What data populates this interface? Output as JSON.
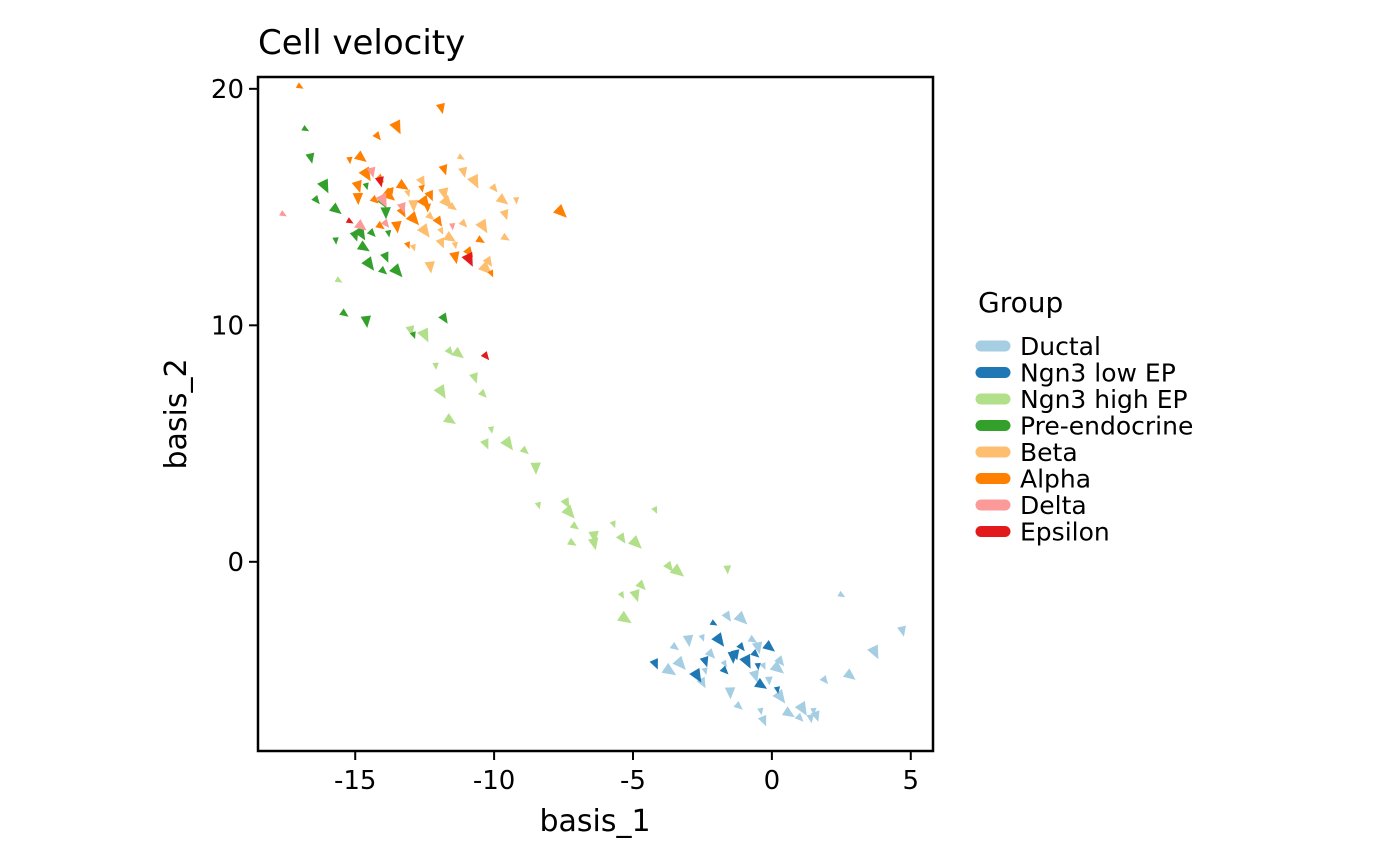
{
  "chart_data": {
    "type": "scatter",
    "title": "Cell velocity",
    "xlabel": "basis_1",
    "ylabel": "basis_2",
    "xlim": [
      -18.5,
      5.8
    ],
    "ylim": [
      -8.0,
      20.5
    ],
    "xticks": [
      -15,
      -10,
      -5,
      0,
      5
    ],
    "yticks": [
      0,
      10,
      20
    ],
    "xtick_labels": [
      "-15",
      "-10",
      "-5",
      "0",
      "5"
    ],
    "ytick_labels": [
      "0",
      "10",
      "20"
    ],
    "grid": false,
    "legend": {
      "title": "Group",
      "placement": "right"
    },
    "series": [
      {
        "name": "Ductal",
        "color": "#a6cee3",
        "points": [
          [
            2.5,
            -1.4
          ],
          [
            4.7,
            -2.9
          ],
          [
            3.7,
            -3.8
          ],
          [
            1.9,
            -5.0
          ],
          [
            2.8,
            -4.8
          ],
          [
            1.5,
            -6.3
          ],
          [
            1.6,
            -6.5
          ],
          [
            1.1,
            -6.2
          ],
          [
            1.0,
            -6.6
          ],
          [
            0.6,
            -6.4
          ],
          [
            -0.4,
            -6.3
          ],
          [
            -0.3,
            -6.7
          ],
          [
            0.3,
            -5.7
          ],
          [
            -1.2,
            -6.1
          ],
          [
            -1.5,
            -5.5
          ],
          [
            -2.4,
            -4.6
          ],
          [
            -2.5,
            -5.1
          ],
          [
            -3.3,
            -4.3
          ],
          [
            -3.5,
            -3.6
          ],
          [
            -3.0,
            -3.3
          ],
          [
            -2.5,
            -3.2
          ],
          [
            -1.6,
            -2.3
          ],
          [
            -1.1,
            -2.4
          ],
          [
            -0.7,
            -3.3
          ],
          [
            -0.5,
            -3.6
          ],
          [
            -0.3,
            -4.4
          ],
          [
            0.3,
            -4.2
          ],
          [
            0.2,
            -4.5
          ],
          [
            -0.1,
            -5.0
          ],
          [
            -0.6,
            -4.8
          ],
          [
            -1.7,
            -4.3
          ],
          [
            -2.2,
            -3.9
          ],
          [
            -3.7,
            -4.6
          ],
          [
            1.4,
            -6.6
          ]
        ]
      },
      {
        "name": "Ngn3 low EP",
        "color": "#1f78b4",
        "points": [
          [
            -2.1,
            -2.6
          ],
          [
            -1.3,
            -3.9
          ],
          [
            -0.9,
            -4.2
          ],
          [
            -1.1,
            -3.6
          ],
          [
            -0.1,
            -3.6
          ],
          [
            -0.5,
            -4.4
          ],
          [
            -2.4,
            -4.2
          ],
          [
            -2.7,
            -4.8
          ],
          [
            -1.7,
            -4.6
          ],
          [
            -0.4,
            -5.2
          ],
          [
            0.2,
            -5.4
          ],
          [
            -4.2,
            -4.3
          ],
          [
            -1.9,
            -3.3
          ],
          [
            -0.6,
            -3.9
          ],
          [
            -1.4,
            -4.0
          ]
        ]
      },
      {
        "name": "Ngn3 high EP",
        "color": "#b2df8a",
        "points": [
          [
            -15.6,
            11.9
          ],
          [
            -13.0,
            9.8
          ],
          [
            -12.5,
            9.6
          ],
          [
            -11.6,
            8.9
          ],
          [
            -11.3,
            8.8
          ],
          [
            -12.1,
            8.3
          ],
          [
            -10.7,
            7.8
          ],
          [
            -11.9,
            7.2
          ],
          [
            -10.4,
            7.1
          ],
          [
            -11.6,
            6.0
          ],
          [
            -10.1,
            5.6
          ],
          [
            -10.3,
            5.0
          ],
          [
            -9.5,
            5.0
          ],
          [
            -8.9,
            4.7
          ],
          [
            -8.5,
            4.0
          ],
          [
            -8.4,
            2.4
          ],
          [
            -7.4,
            2.5
          ],
          [
            -7.3,
            2.1
          ],
          [
            -7.1,
            1.5
          ],
          [
            -6.4,
            1.1
          ],
          [
            -5.7,
            1.6
          ],
          [
            -5.4,
            1.0
          ],
          [
            -4.9,
            0.8
          ],
          [
            -7.2,
            0.8
          ],
          [
            -6.4,
            0.8
          ],
          [
            -4.2,
            2.2
          ],
          [
            -3.7,
            -0.2
          ],
          [
            -3.4,
            -0.4
          ],
          [
            -1.6,
            -0.3
          ],
          [
            -4.9,
            -1.4
          ],
          [
            -5.4,
            -1.4
          ],
          [
            -4.7,
            -1.0
          ],
          [
            -5.3,
            -2.4
          ]
        ]
      },
      {
        "name": "Pre-endocrine",
        "color": "#33a02c",
        "points": [
          [
            -16.8,
            18.3
          ],
          [
            -16.6,
            17.1
          ],
          [
            -16.1,
            15.9
          ],
          [
            -16.4,
            15.3
          ],
          [
            -15.7,
            14.9
          ],
          [
            -15.7,
            13.6
          ],
          [
            -15.0,
            13.8
          ],
          [
            -14.8,
            13.9
          ],
          [
            -14.4,
            13.9
          ],
          [
            -14.7,
            13.3
          ],
          [
            -13.8,
            13.9
          ],
          [
            -13.9,
            12.9
          ],
          [
            -14.5,
            12.6
          ],
          [
            -14.0,
            12.3
          ],
          [
            -13.9,
            14.8
          ],
          [
            -14.6,
            15.9
          ],
          [
            -14.0,
            15.2
          ],
          [
            -13.5,
            12.3
          ],
          [
            -15.4,
            10.5
          ],
          [
            -14.6,
            10.2
          ],
          [
            -12.9,
            9.6
          ],
          [
            -11.8,
            10.3
          ]
        ]
      },
      {
        "name": "Beta",
        "color": "#fdbf6f",
        "points": [
          [
            -11.2,
            17.1
          ],
          [
            -11.1,
            16.5
          ],
          [
            -10.7,
            16.1
          ],
          [
            -10.0,
            15.8
          ],
          [
            -9.7,
            15.3
          ],
          [
            -9.2,
            15.3
          ],
          [
            -9.6,
            14.7
          ],
          [
            -10.4,
            14.2
          ],
          [
            -11.1,
            14.3
          ],
          [
            -11.6,
            13.7
          ],
          [
            -11.4,
            13.4
          ],
          [
            -11.9,
            13.5
          ],
          [
            -12.5,
            14.0
          ],
          [
            -12.3,
            14.6
          ],
          [
            -12.9,
            15.1
          ],
          [
            -13.1,
            15.6
          ],
          [
            -12.6,
            16.1
          ],
          [
            -11.7,
            15.2
          ],
          [
            -11.5,
            15.0
          ],
          [
            -12.3,
            12.5
          ],
          [
            -12.9,
            13.3
          ],
          [
            -10.2,
            12.7
          ],
          [
            -10.3,
            12.4
          ],
          [
            -9.6,
            13.7
          ],
          [
            -11.8,
            15.6
          ],
          [
            -11.9,
            14.0
          ]
        ]
      },
      {
        "name": "Alpha",
        "color": "#ff7f00",
        "points": [
          [
            -17.0,
            20.1
          ],
          [
            -11.9,
            19.2
          ],
          [
            -13.5,
            18.4
          ],
          [
            -14.2,
            18.0
          ],
          [
            -14.8,
            17.1
          ],
          [
            -15.2,
            17.0
          ],
          [
            -11.8,
            16.6
          ],
          [
            -14.6,
            16.4
          ],
          [
            -14.1,
            16.2
          ],
          [
            -13.3,
            15.9
          ],
          [
            -12.6,
            15.8
          ],
          [
            -12.3,
            15.5
          ],
          [
            -12.5,
            15.2
          ],
          [
            -14.3,
            15.3
          ],
          [
            -14.9,
            15.4
          ],
          [
            -13.7,
            15.7
          ],
          [
            -13.3,
            14.8
          ],
          [
            -12.9,
            14.5
          ],
          [
            -14.1,
            14.2
          ],
          [
            -13.5,
            14.2
          ],
          [
            -13.1,
            13.4
          ],
          [
            -12.0,
            14.4
          ],
          [
            -7.6,
            14.8
          ],
          [
            -10.5,
            13.6
          ],
          [
            -11.4,
            12.9
          ],
          [
            -10.1,
            12.2
          ],
          [
            -10.9,
            13.1
          ],
          [
            -13.8,
            15.5
          ],
          [
            -12.4,
            15.0
          ],
          [
            -14.9,
            15.9
          ]
        ]
      },
      {
        "name": "Delta",
        "color": "#fb9a99",
        "points": [
          [
            -17.6,
            14.7
          ],
          [
            -14.4,
            16.5
          ],
          [
            -14.0,
            15.3
          ],
          [
            -13.9,
            14.3
          ],
          [
            -14.8,
            14.2
          ],
          [
            -11.5,
            14.2
          ],
          [
            -13.3,
            15.0
          ]
        ]
      },
      {
        "name": "Epsilon",
        "color": "#e31a1c",
        "points": [
          [
            -15.2,
            14.4
          ],
          [
            -14.1,
            16.1
          ],
          [
            -10.9,
            12.8
          ],
          [
            -10.3,
            8.7
          ]
        ]
      }
    ]
  }
}
